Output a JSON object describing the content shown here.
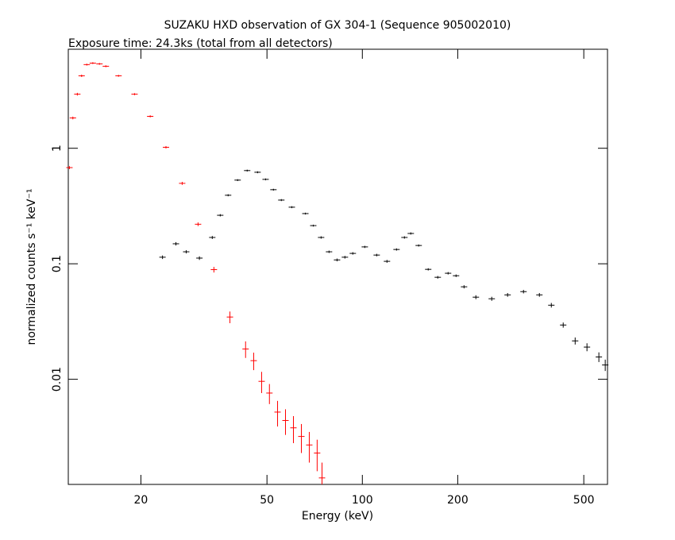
{
  "chart_data": {
    "type": "scatter",
    "title": "SUZAKU HXD observation of GX 304-1 (Sequence 905002010)",
    "subtitle": "Exposure time: 24.3ks (total from all detectors)",
    "x_label": "Energy (keV)",
    "y_label": "normalized counts s⁻¹ keV⁻¹",
    "log_x": true,
    "log_y": true,
    "xlim": [
      11.8,
      594
    ],
    "ylim": [
      0.00123,
      7.2
    ],
    "xticks": [
      20,
      50,
      100,
      200,
      500
    ],
    "yticks": [
      0.01,
      0.1,
      1
    ],
    "series": [
      {
        "color": "#ff0000",
        "x": [
          11.9,
          12.2,
          12.6,
          13.0,
          13.5,
          14.1,
          14.8,
          15.5,
          17.0,
          19.1,
          21.4,
          24.0,
          27.0,
          30.3,
          34.0,
          38.2,
          42.8,
          45.4,
          48.1,
          50.9,
          54.0,
          57.2,
          60.6,
          64.2,
          68.0,
          72.0,
          74.6
        ],
        "values": [
          0.68,
          1.83,
          2.94,
          4.24,
          5.3,
          5.46,
          5.38,
          5.13,
          4.24,
          2.94,
          1.89,
          1.02,
          0.497,
          0.22,
          0.089,
          0.0346,
          0.0183,
          0.0145,
          0.0096,
          0.0076,
          0.0052,
          0.0044,
          0.0038,
          0.0032,
          0.0027,
          0.0023,
          0.0014
        ],
        "yerr": [
          0.02,
          0.05,
          0.08,
          0.1,
          0.1,
          0.1,
          0.1,
          0.1,
          0.08,
          0.06,
          0.04,
          0.025,
          0.015,
          0.008,
          0.005,
          0.004,
          0.003,
          0.0025,
          0.002,
          0.0015,
          0.0013,
          0.0011,
          0.001,
          0.0009,
          0.0008,
          0.0007,
          0.0005
        ]
      },
      {
        "color": "#000000",
        "x": [
          23.4,
          25.8,
          27.8,
          30.6,
          33.6,
          35.6,
          37.7,
          40.4,
          43.3,
          46.7,
          49.5,
          52.4,
          55.5,
          59.9,
          66.1,
          70.0,
          74.1,
          78.5,
          83.2,
          88.1,
          93.3,
          101.8,
          111.0,
          119.6,
          128.2,
          135.8,
          142.2,
          150.6,
          161.4,
          173.0,
          186.5,
          197.6,
          209.4,
          228.2,
          256.1,
          287.4,
          322.6,
          362.1,
          394.9,
          430.5,
          469.6,
          511.7,
          557.9,
          584.3
        ],
        "values": [
          0.114,
          0.149,
          0.127,
          0.112,
          0.169,
          0.263,
          0.392,
          0.53,
          0.641,
          0.62,
          0.538,
          0.438,
          0.356,
          0.309,
          0.272,
          0.214,
          0.169,
          0.127,
          0.108,
          0.114,
          0.123,
          0.14,
          0.119,
          0.105,
          0.133,
          0.169,
          0.183,
          0.144,
          0.0895,
          0.0764,
          0.0828,
          0.0788,
          0.0632,
          0.0514,
          0.0498,
          0.0538,
          0.0574,
          0.0538,
          0.0438,
          0.0295,
          0.0215,
          0.019,
          0.0156,
          0.0133
        ],
        "yerr": [
          0.004,
          0.005,
          0.004,
          0.004,
          0.005,
          0.006,
          0.008,
          0.01,
          0.012,
          0.012,
          0.01,
          0.008,
          0.007,
          0.006,
          0.005,
          0.004,
          0.004,
          0.003,
          0.003,
          0.003,
          0.003,
          0.003,
          0.003,
          0.003,
          0.003,
          0.004,
          0.004,
          0.003,
          0.002,
          0.002,
          0.002,
          0.002,
          0.002,
          0.002,
          0.002,
          0.002,
          0.002,
          0.002,
          0.002,
          0.0015,
          0.0015,
          0.0015,
          0.0015,
          0.0015
        ]
      }
    ]
  }
}
